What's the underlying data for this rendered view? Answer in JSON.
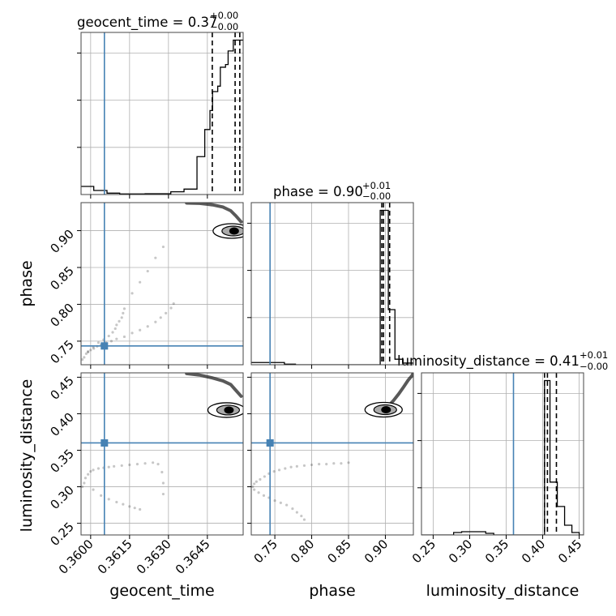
{
  "chart_data": {
    "type": "corner",
    "parameters": [
      "geocent_time",
      "phase",
      "luminosity_distance"
    ],
    "truths": {
      "geocent_time": 0.36053,
      "phase": 0.7435,
      "luminosity_distance": 0.36
    },
    "truth_color": "#4682b4",
    "titles": {
      "geocent_time": {
        "name": "geocent_time",
        "value": "0.37",
        "plus": "+0.00",
        "minus": "−0.00"
      },
      "phase": {
        "name": "phase",
        "value": "0.90",
        "plus": "+0.01",
        "minus": "−0.00"
      },
      "luminosity_distance": {
        "name": "luminosity_distance",
        "value": "0.41",
        "plus": "+0.01",
        "minus": "−0.00"
      }
    },
    "axes": {
      "geocent_time": {
        "range": [
          0.35963,
          0.36588
        ],
        "ticks": [
          0.36,
          0.3615,
          0.363,
          0.3645
        ],
        "tick_labels": [
          "0.3600",
          "0.3615",
          "0.3630",
          "0.3645"
        ],
        "label": "geocent_time"
      },
      "phase": {
        "range": [
          0.718,
          0.938
        ],
        "ticks": [
          0.75,
          0.8,
          0.85,
          0.9
        ],
        "tick_labels": [
          "0.75",
          "0.80",
          "0.85",
          "0.90"
        ],
        "label": "phase"
      },
      "luminosity_distance": {
        "range": [
          0.234,
          0.456
        ],
        "ticks": [
          0.25,
          0.3,
          0.35,
          0.4,
          0.45
        ],
        "tick_labels": [
          "0.25",
          "0.30",
          "0.35",
          "0.40",
          "0.45"
        ],
        "label": "luminosity_distance"
      }
    },
    "histograms": {
      "geocent_time": {
        "bin_edges": [
          0.35963,
          0.36012,
          0.36063,
          0.36112,
          0.36161,
          0.3621,
          0.3626,
          0.36309,
          0.3636,
          0.3641,
          0.3644,
          0.3646,
          0.3647,
          0.3649,
          0.365,
          0.3652,
          0.3653,
          0.3655,
          0.3656,
          0.36588
        ],
        "counts": [
          3,
          1.5,
          0.5,
          0.2,
          0.2,
          0.3,
          0.3,
          1,
          2,
          14,
          24,
          31,
          38,
          40,
          47,
          48,
          53,
          57,
          57
        ],
        "quantiles": [
          0.36469,
          0.36557,
          0.36575
        ]
      },
      "phase": {
        "bin_edges": [
          0.718,
          0.733,
          0.748,
          0.763,
          0.778,
          0.793,
          0.808,
          0.823,
          0.838,
          0.853,
          0.868,
          0.883,
          0.893,
          0.904,
          0.913,
          0.924,
          0.938
        ],
        "counts": [
          0.4,
          0.4,
          0.4,
          0.1,
          0,
          0,
          0,
          0,
          0,
          0,
          0,
          0,
          28,
          10,
          1,
          0.3
        ],
        "quantiles": [
          0.8952,
          0.8975,
          0.9058
        ]
      },
      "luminosity_distance": {
        "bin_edges": [
          0.234,
          0.245,
          0.256,
          0.267,
          0.278,
          0.289,
          0.3,
          0.311,
          0.322,
          0.333,
          0.344,
          0.355,
          0.366,
          0.377,
          0.388,
          0.399,
          0.4025,
          0.406,
          0.41,
          0.415,
          0.42,
          0.43,
          0.44,
          0.45,
          0.456
        ],
        "counts": [
          0,
          0,
          0,
          0,
          0.3,
          0.4,
          0.4,
          0.4,
          0.2,
          0,
          0,
          0,
          0,
          0,
          0,
          0,
          19,
          19,
          6.5,
          6.5,
          3.5,
          1.2,
          0.3,
          0
        ],
        "quantiles": [
          0.4025,
          0.4065,
          0.4188
        ]
      }
    },
    "scatter": {
      "phase_vs_geocent_time": {
        "x": [
          0.35968,
          0.35975,
          0.35983,
          0.3599,
          0.36,
          0.36012,
          0.36025,
          0.3604,
          0.3606,
          0.3608,
          0.361,
          0.3613,
          0.3616,
          0.3619,
          0.3622,
          0.3625,
          0.3627,
          0.3629,
          0.3631,
          0.3632,
          0.3599,
          0.3601,
          0.3603,
          0.3605,
          0.3607,
          0.36085,
          0.36095,
          0.361,
          0.3611,
          0.3612,
          0.36125,
          0.3613,
          0.3616,
          0.3619,
          0.3622,
          0.3625,
          0.3628
        ],
        "y": [
          0.725,
          0.728,
          0.733,
          0.736,
          0.738,
          0.74,
          0.743,
          0.745,
          0.748,
          0.75,
          0.753,
          0.756,
          0.761,
          0.765,
          0.77,
          0.776,
          0.782,
          0.788,
          0.795,
          0.801,
          0.735,
          0.742,
          0.748,
          0.752,
          0.757,
          0.762,
          0.767,
          0.772,
          0.777,
          0.782,
          0.788,
          0.794,
          0.815,
          0.83,
          0.845,
          0.863,
          0.878
        ],
        "contour_center": [
          0.3655,
          0.8995
        ],
        "tail_x": [
          0.3637,
          0.3642,
          0.3647,
          0.3651,
          0.3654,
          0.3656,
          0.3658
        ],
        "tail_y": [
          0.9375,
          0.937,
          0.935,
          0.932,
          0.927,
          0.92,
          0.912
        ]
      },
      "luminosity_distance_vs_geocent_time": {
        "x": [
          0.35968,
          0.35975,
          0.3598,
          0.3599,
          0.36,
          0.3601,
          0.3603,
          0.3605,
          0.3607,
          0.3609,
          0.3612,
          0.3615,
          0.3618,
          0.3621,
          0.3624,
          0.3626,
          0.36275,
          0.3628,
          0.3628,
          0.3601,
          0.3604,
          0.3607,
          0.361,
          0.36125,
          0.3615,
          0.3617,
          0.3619
        ],
        "y": [
          0.3,
          0.305,
          0.312,
          0.317,
          0.321,
          0.323,
          0.325,
          0.326,
          0.327,
          0.328,
          0.329,
          0.33,
          0.331,
          0.332,
          0.333,
          0.331,
          0.32,
          0.305,
          0.29,
          0.296,
          0.288,
          0.283,
          0.279,
          0.276,
          0.273,
          0.271,
          0.269
        ],
        "contour_center": [
          0.3653,
          0.405
        ],
        "tail_x": [
          0.3637,
          0.3642,
          0.3647,
          0.3651,
          0.3654,
          0.3656,
          0.3658
        ],
        "tail_y": [
          0.455,
          0.453,
          0.449,
          0.445,
          0.44,
          0.432,
          0.424
        ]
      },
      "luminosity_distance_vs_phase": {
        "x": [
          0.72,
          0.722,
          0.725,
          0.73,
          0.736,
          0.742,
          0.749,
          0.756,
          0.764,
          0.772,
          0.78,
          0.79,
          0.8,
          0.81,
          0.82,
          0.83,
          0.84,
          0.85,
          0.722,
          0.728,
          0.735,
          0.742,
          0.75,
          0.758,
          0.766,
          0.774,
          0.78,
          0.786,
          0.79
        ],
        "y": [
          0.3,
          0.304,
          0.307,
          0.31,
          0.314,
          0.318,
          0.321,
          0.323,
          0.325,
          0.327,
          0.328,
          0.329,
          0.33,
          0.331,
          0.331,
          0.332,
          0.332,
          0.333,
          0.296,
          0.292,
          0.288,
          0.285,
          0.281,
          0.278,
          0.275,
          0.27,
          0.265,
          0.26,
          0.255
        ],
        "contour_center": [
          0.8998,
          0.4055
        ],
        "tail_x": [
          0.903,
          0.911,
          0.918,
          0.925,
          0.931,
          0.936,
          0.938
        ],
        "tail_y": [
          0.4095,
          0.418,
          0.427,
          0.437,
          0.446,
          0.452,
          0.456
        ]
      }
    }
  }
}
